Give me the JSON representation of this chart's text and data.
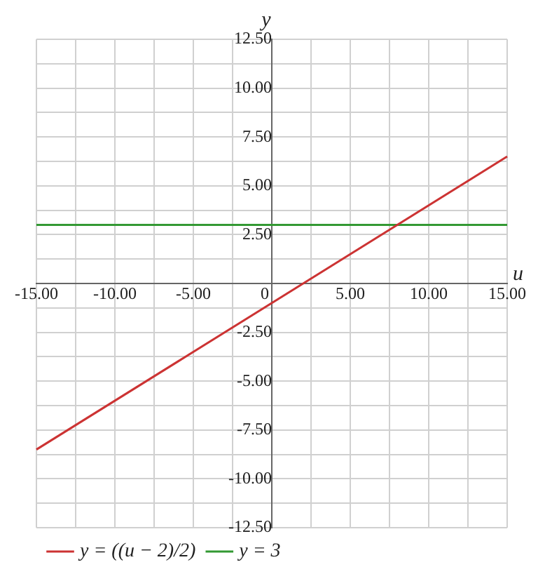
{
  "chart_data": {
    "type": "line",
    "xlabel": "u",
    "ylabel": "y",
    "xlim": [
      -15,
      15
    ],
    "ylim": [
      -12.5,
      12.5
    ],
    "xticks": [
      {
        "value": -15,
        "label": "-15.00"
      },
      {
        "value": -12.5,
        "label": null
      },
      {
        "value": -10,
        "label": "-10.00"
      },
      {
        "value": -7.5,
        "label": null
      },
      {
        "value": -5,
        "label": "-5.00"
      },
      {
        "value": -2.5,
        "label": null
      },
      0,
      {
        "value": 2.5,
        "label": null
      },
      {
        "value": 5,
        "label": "5.00"
      },
      {
        "value": 7.5,
        "label": null
      },
      {
        "value": 10,
        "label": "10.00"
      },
      {
        "value": 12.5,
        "label": null
      },
      {
        "value": 15,
        "label": "15.00"
      }
    ],
    "yticks": [
      {
        "value": -12.5,
        "label": "-12.50"
      },
      {
        "value": -11.25,
        "label": null
      },
      {
        "value": -10,
        "label": "-10.00"
      },
      {
        "value": -8.75,
        "label": null
      },
      {
        "value": -7.5,
        "label": "-7.50"
      },
      {
        "value": -6.25,
        "label": null
      },
      {
        "value": -5,
        "label": "-5.00"
      },
      {
        "value": -3.75,
        "label": null
      },
      {
        "value": -2.5,
        "label": "-2.50"
      },
      {
        "value": -1.25,
        "label": null
      },
      {
        "value": 0,
        "label": null
      },
      {
        "value": 1.25,
        "label": null
      },
      {
        "value": 2.5,
        "label": "2.50"
      },
      {
        "value": 3.75,
        "label": null
      },
      {
        "value": 5,
        "label": "5.00"
      },
      {
        "value": 6.25,
        "label": null
      },
      {
        "value": 7.5,
        "label": "7.50"
      },
      {
        "value": 8.75,
        "label": null
      },
      {
        "value": 10,
        "label": "10.00"
      },
      {
        "value": 11.25,
        "label": null
      },
      {
        "value": 12.5,
        "label": "12.50"
      }
    ],
    "x": [
      -15,
      15
    ],
    "series": [
      {
        "name": "y = ((u − 2)/2)",
        "color": "#cc3333",
        "values": [
          -8.5,
          6.5
        ]
      },
      {
        "name": "y = 3",
        "color": "#339933",
        "values": [
          3,
          3
        ]
      }
    ],
    "grid": true,
    "legend": "bottom",
    "marker": "none",
    "line_style": "solid"
  }
}
